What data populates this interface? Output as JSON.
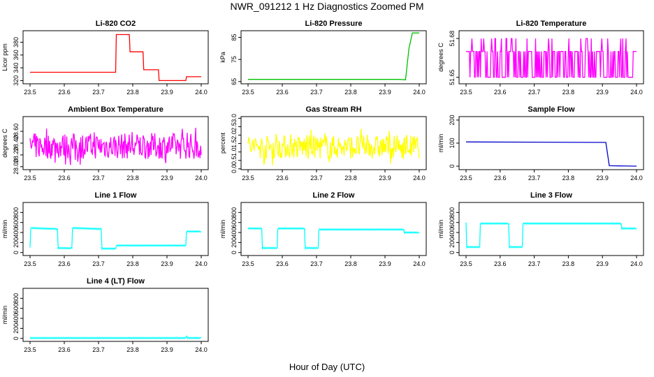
{
  "title": "NWR_091212  1 Hz Diagnostics Zoomed PM",
  "xlabel": "Hour of Day (UTC)",
  "chart_data": [
    {
      "type": "line",
      "title": "Li-820 CO2",
      "ylabel": "Licor ppm",
      "color": "#ff0000",
      "xlim": [
        23.5,
        24.0
      ],
      "ylim": [
        315,
        398
      ],
      "xticks": [
        23.5,
        23.6,
        23.7,
        23.8,
        23.9,
        24.0
      ],
      "yticks": [
        320,
        340,
        360,
        380
      ],
      "x": [
        23.5,
        23.75,
        23.752,
        23.79,
        23.792,
        23.83,
        23.832,
        23.875,
        23.877,
        23.955,
        23.957,
        24.0
      ],
      "y": [
        333,
        333,
        392,
        392,
        365,
        365,
        337,
        337,
        320,
        320,
        326,
        326
      ]
    },
    {
      "type": "line",
      "title": "Li-820 Pressure",
      "ylabel": "kPa",
      "color": "#00c000",
      "xlim": [
        23.5,
        24.0
      ],
      "ylim": [
        64,
        88
      ],
      "xticks": [
        23.5,
        23.6,
        23.7,
        23.8,
        23.9,
        24.0
      ],
      "yticks": [
        65,
        75,
        85
      ],
      "x": [
        23.5,
        23.94,
        23.96,
        23.97,
        23.98,
        24.0
      ],
      "y": [
        66,
        66,
        65.8,
        80,
        87,
        87
      ]
    },
    {
      "type": "line",
      "title": "Li-820 Temperature",
      "ylabel": "degrees C",
      "color": "#ff00ff",
      "xlim": [
        23.5,
        24.0
      ],
      "ylim": [
        51.645,
        51.686
      ],
      "xticks": [
        23.5,
        23.6,
        23.7,
        23.8,
        23.9,
        24.0
      ],
      "yticks": [
        51.65,
        51.68
      ],
      "baseline": 51.67,
      "low": 51.65,
      "high": 51.68,
      "x": [
        23.5,
        24.0
      ],
      "y": [
        51.67,
        51.67
      ]
    },
    {
      "type": "line",
      "title": "Ambient Box Temperature",
      "ylabel": "degrees C",
      "color": "#ff00ff",
      "xlim": [
        23.5,
        24.0
      ],
      "ylim": [
        27.95,
        28.85
      ],
      "xticks": [
        23.5,
        23.6,
        23.7,
        23.8,
        23.9,
        24.0
      ],
      "yticks": [
        28.0,
        28.2,
        28.4,
        28.6
      ],
      "x": [
        23.5,
        24.0
      ],
      "y": [
        28.35,
        28.35
      ],
      "noise": 0.22
    },
    {
      "type": "line",
      "title": "Gas Stream RH",
      "ylabel": "percent",
      "color": "#ffff00",
      "xlim": [
        23.5,
        24.0
      ],
      "ylim": [
        -0.05,
        3.1
      ],
      "xticks": [
        23.5,
        23.6,
        23.7,
        23.8,
        23.9,
        24.0
      ],
      "yticks": [
        0.0,
        0.5,
        1.0,
        1.5,
        2.0,
        2.5,
        3.0
      ],
      "x": [
        23.5,
        24.0
      ],
      "y": [
        1.3,
        1.3
      ],
      "noise": 0.7
    },
    {
      "type": "line",
      "title": "Sample Flow",
      "ylabel": "ml/min",
      "color": "#0000cc",
      "xlim": [
        23.5,
        24.0
      ],
      "ylim": [
        -15,
        215
      ],
      "xticks": [
        23.5,
        23.6,
        23.7,
        23.8,
        23.9,
        24.0
      ],
      "yticks": [
        0,
        100,
        200
      ],
      "x": [
        23.5,
        23.91,
        23.92,
        24.0
      ],
      "y": [
        105,
        103,
        2,
        0
      ]
    },
    {
      "type": "line",
      "title": "Line 1 Flow",
      "ylabel": "ml/min",
      "color": "#00ffff",
      "xlim": [
        23.5,
        24.0
      ],
      "ylim": [
        -60,
        1000
      ],
      "xticks": [
        23.5,
        23.6,
        23.7,
        23.8,
        23.9,
        24.0
      ],
      "yticks": [
        0,
        200,
        400,
        600,
        800
      ],
      "x": [
        23.5,
        23.502,
        23.58,
        23.582,
        23.622,
        23.624,
        23.708,
        23.71,
        23.75,
        23.752,
        23.955,
        23.957,
        24.0
      ],
      "y": [
        100,
        490,
        470,
        90,
        85,
        490,
        470,
        80,
        75,
        140,
        140,
        420,
        420
      ]
    },
    {
      "type": "line",
      "title": "Line 2 Flow",
      "ylabel": "ml/min",
      "color": "#00ffff",
      "xlim": [
        23.5,
        24.0
      ],
      "ylim": [
        -60,
        1000
      ],
      "xticks": [
        23.5,
        23.6,
        23.7,
        23.8,
        23.9,
        24.0
      ],
      "yticks": [
        0,
        200,
        400,
        600,
        800
      ],
      "x": [
        23.5,
        23.54,
        23.542,
        23.585,
        23.587,
        23.665,
        23.667,
        23.705,
        23.707,
        23.955,
        23.957,
        24.0
      ],
      "y": [
        480,
        480,
        90,
        90,
        480,
        480,
        90,
        90,
        460,
        460,
        400,
        400
      ]
    },
    {
      "type": "line",
      "title": "Line 3 Flow",
      "ylabel": "ml/min",
      "color": "#00ffff",
      "xlim": [
        23.5,
        24.0
      ],
      "ylim": [
        -60,
        1000
      ],
      "xticks": [
        23.5,
        23.6,
        23.7,
        23.8,
        23.9,
        24.0
      ],
      "yticks": [
        0,
        200,
        400,
        600,
        800
      ],
      "x": [
        23.5,
        23.502,
        23.54,
        23.542,
        23.625,
        23.627,
        23.665,
        23.667,
        23.955,
        23.957,
        24.0
      ],
      "y": [
        600,
        110,
        110,
        580,
        580,
        110,
        110,
        580,
        580,
        480,
        480
      ]
    },
    {
      "type": "line",
      "title": "Line 4 (LT) Flow",
      "ylabel": "ml/min",
      "color": "#00ffff",
      "xlim": [
        23.5,
        24.0
      ],
      "ylim": [
        -60,
        1000
      ],
      "xticks": [
        23.5,
        23.6,
        23.7,
        23.8,
        23.9,
        24.0
      ],
      "yticks": [
        0,
        200,
        400,
        600,
        800
      ],
      "x": [
        23.5,
        23.955,
        23.958,
        23.961,
        24.0
      ],
      "y": [
        8,
        8,
        45,
        8,
        8
      ]
    }
  ]
}
